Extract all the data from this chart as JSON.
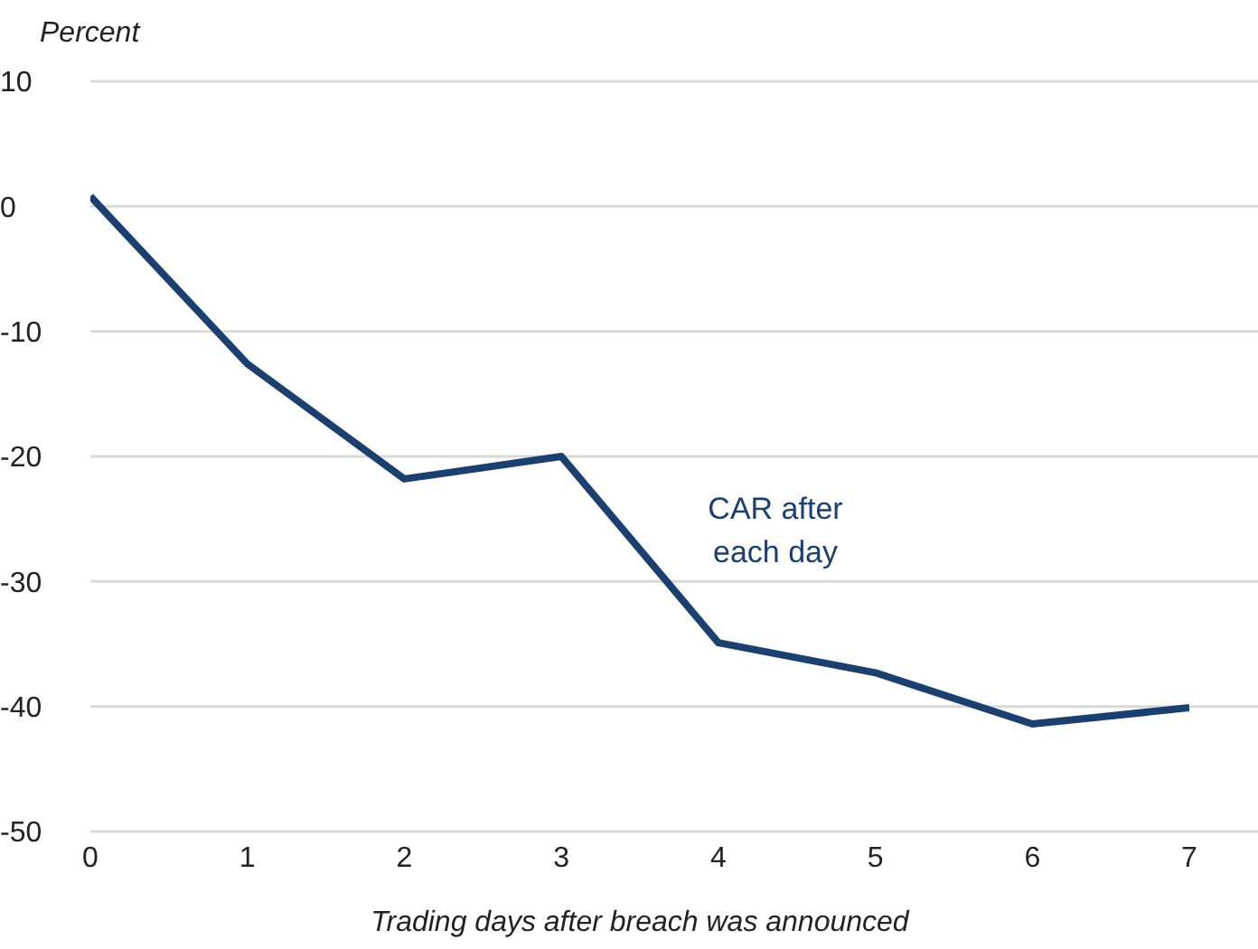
{
  "chart_data": {
    "type": "line",
    "ylabel": "Percent",
    "xlabel": "Trading days after breach was announced",
    "categories": [
      "0",
      "1",
      "2",
      "3",
      "4",
      "5",
      "6",
      "7"
    ],
    "series": [
      {
        "name": "CAR after each day",
        "color": "#1b3f6e",
        "values": [
          0.8,
          -12.6,
          -21.8,
          -20,
          -34.9,
          -37.3,
          -41.4,
          -40.1
        ]
      }
    ],
    "ylim": [
      -50,
      10
    ],
    "yticks": [
      -50,
      -40,
      -30,
      -20,
      -10,
      0,
      10
    ],
    "grid": "y",
    "marker": "none",
    "line_style": "solid"
  }
}
